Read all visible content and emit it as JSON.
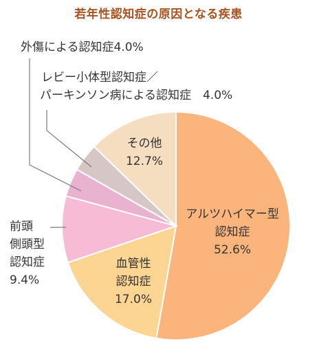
{
  "title": "若年性認知症の原因となる疾患",
  "chart_data": {
    "type": "pie",
    "title": "若年性認知症の原因となる疾患",
    "slices": [
      {
        "label": "アルツハイマー型認知症",
        "value": 52.6,
        "pct": "52.6%",
        "color": "#fbb57c"
      },
      {
        "label": "血管性認知症",
        "value": 17.0,
        "pct": "17.0%",
        "color": "#fdd593"
      },
      {
        "label": "前頭側頭型認知症",
        "value": 9.4,
        "pct": "9.4%",
        "color": "#f7bbd6"
      },
      {
        "label": "外傷による認知症",
        "value": 4.0,
        "pct": "4.0%",
        "color": "#e9b2cf"
      },
      {
        "label": "レビー小体型認知症／パーキンソン病による認知症",
        "value": 4.0,
        "pct": "4.0%",
        "color": "#d6c7c6"
      },
      {
        "label": "その他",
        "value": 12.7,
        "pct": "12.7%",
        "color": "#f5ddc0"
      }
    ]
  },
  "labels": {
    "alz": {
      "l1": "アルツハイマー型",
      "l2": "認知症",
      "l3": "52.6%"
    },
    "vasc": {
      "l1": "血管性",
      "l2": "認知症",
      "l3": "17.0%"
    },
    "ftd": {
      "l1": "前頭",
      "l2": "側頭型",
      "l3": "認知症",
      "l4": "9.4%"
    },
    "trauma": {
      "l1": "外傷による認知症4.0%"
    },
    "lewy": {
      "l1": "レビー小体型認知症／",
      "l2": "パーキンソン病による認知症　4.0%"
    },
    "other": {
      "l1": "その他",
      "l2": "12.7%"
    }
  }
}
